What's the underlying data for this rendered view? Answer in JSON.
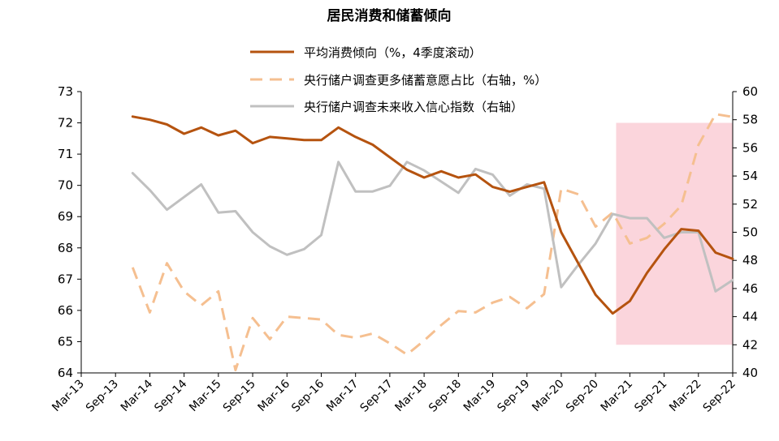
{
  "chart_data": {
    "type": "line",
    "title": "居民消费和储蓄倾向",
    "x_labels": [
      "Mar-13",
      "Sep-13",
      "Mar-14",
      "Sep-14",
      "Mar-15",
      "Sep-15",
      "Mar-16",
      "Sep-16",
      "Mar-17",
      "Sep-17",
      "Mar-18",
      "Sep-18",
      "Mar-19",
      "Sep-19",
      "Mar-20",
      "Sep-20",
      "Mar-21",
      "Sep-21",
      "Mar-22",
      "Sep-22"
    ],
    "y_left": {
      "min": 64,
      "max": 73,
      "ticks": [
        "64",
        "65",
        "66",
        "67",
        "68",
        "69",
        "70",
        "71",
        "72",
        "73"
      ]
    },
    "y_right": {
      "min": 40,
      "max": 60,
      "ticks": [
        "40",
        "42",
        "44",
        "46",
        "48",
        "50",
        "52",
        "54",
        "56",
        "58",
        "60"
      ]
    },
    "highlight": {
      "x_start": 15.6,
      "x_end": 19.0,
      "y_left_top": 72.0,
      "y_left_bottom": 64.9,
      "color": "#fbd5dc"
    },
    "series": [
      {
        "name": "平均消费倾向（%，4季度滚动）",
        "axis": "left",
        "color": "#b5530f",
        "style": "solid",
        "points": [
          [
            1.5,
            72.2
          ],
          [
            2,
            72.1
          ],
          [
            2.5,
            71.95
          ],
          [
            3,
            71.65
          ],
          [
            3.5,
            71.85
          ],
          [
            4,
            71.6
          ],
          [
            4.5,
            71.75
          ],
          [
            5,
            71.35
          ],
          [
            5.5,
            71.55
          ],
          [
            6,
            71.5
          ],
          [
            6.5,
            71.45
          ],
          [
            7,
            71.45
          ],
          [
            7.5,
            71.85
          ],
          [
            8,
            71.55
          ],
          [
            8.5,
            71.3
          ],
          [
            9,
            70.9
          ],
          [
            9.5,
            70.5
          ],
          [
            10,
            70.25
          ],
          [
            10.5,
            70.45
          ],
          [
            11,
            70.25
          ],
          [
            11.5,
            70.35
          ],
          [
            12,
            69.95
          ],
          [
            12.5,
            69.8
          ],
          [
            13,
            69.95
          ],
          [
            13.5,
            70.1
          ],
          [
            14,
            68.5
          ],
          [
            14.5,
            67.5
          ],
          [
            15,
            66.5
          ],
          [
            15.5,
            65.9
          ],
          [
            16,
            66.3
          ],
          [
            16.5,
            67.2
          ],
          [
            17,
            67.95
          ],
          [
            17.5,
            68.6
          ],
          [
            18,
            68.55
          ],
          [
            18.5,
            67.85
          ],
          [
            19,
            67.65
          ]
        ]
      },
      {
        "name": "央行储户调查更多储蓄意愿占比（右轴，%）",
        "axis": "right",
        "color": "#f5bf90",
        "style": "dashed",
        "points": [
          [
            1.5,
            47.5
          ],
          [
            2,
            44.3
          ],
          [
            2.5,
            47.8
          ],
          [
            3,
            45.8
          ],
          [
            3.5,
            44.8
          ],
          [
            4,
            45.8
          ],
          [
            4.5,
            40.2
          ],
          [
            5,
            43.9
          ],
          [
            5.5,
            42.4
          ],
          [
            6,
            44
          ],
          [
            6.5,
            43.9
          ],
          [
            7,
            43.8
          ],
          [
            7.5,
            42.7
          ],
          [
            8,
            42.5
          ],
          [
            8.5,
            42.8
          ],
          [
            9,
            42.1
          ],
          [
            9.5,
            41.3
          ],
          [
            10,
            42.3
          ],
          [
            10.5,
            43.4
          ],
          [
            11,
            44.4
          ],
          [
            11.5,
            44.3
          ],
          [
            12,
            45
          ],
          [
            12.5,
            45.4
          ],
          [
            13,
            44.6
          ],
          [
            13.5,
            45.6
          ],
          [
            14,
            53.1
          ],
          [
            14.5,
            52.7
          ],
          [
            15,
            50.4
          ],
          [
            15.5,
            51.4
          ],
          [
            16,
            49.2
          ],
          [
            16.5,
            49.6
          ],
          [
            17,
            50.6
          ],
          [
            17.5,
            51.9
          ],
          [
            18,
            56.2
          ],
          [
            18.5,
            58.4
          ],
          [
            19,
            58.2
          ]
        ]
      },
      {
        "name": "央行储户调查未来收入信心指数（右轴）",
        "axis": "right",
        "color": "#c0c0c0",
        "style": "solid",
        "points": [
          [
            1.5,
            54.2
          ],
          [
            2,
            53
          ],
          [
            2.5,
            51.6
          ],
          [
            3,
            52.5
          ],
          [
            3.5,
            53.4
          ],
          [
            4,
            51.4
          ],
          [
            4.5,
            51.5
          ],
          [
            5,
            50
          ],
          [
            5.5,
            49
          ],
          [
            6,
            48.4
          ],
          [
            6.5,
            48.8
          ],
          [
            7,
            49.8
          ],
          [
            7.5,
            55
          ],
          [
            8,
            52.9
          ],
          [
            8.5,
            52.9
          ],
          [
            9,
            53.3
          ],
          [
            9.5,
            55
          ],
          [
            10,
            54.4
          ],
          [
            10.5,
            53.6
          ],
          [
            11,
            52.8
          ],
          [
            11.5,
            54.5
          ],
          [
            12,
            54.1
          ],
          [
            12.5,
            52.6
          ],
          [
            13,
            53.4
          ],
          [
            13.5,
            53.1
          ],
          [
            14,
            46.1
          ],
          [
            14.5,
            47.7
          ],
          [
            15,
            49.2
          ],
          [
            15.5,
            51.3
          ],
          [
            16,
            51
          ],
          [
            16.5,
            51
          ],
          [
            17,
            49.6
          ],
          [
            17.5,
            50
          ],
          [
            18,
            50
          ],
          [
            18.5,
            45.8
          ],
          [
            19,
            46.6
          ]
        ]
      }
    ]
  }
}
